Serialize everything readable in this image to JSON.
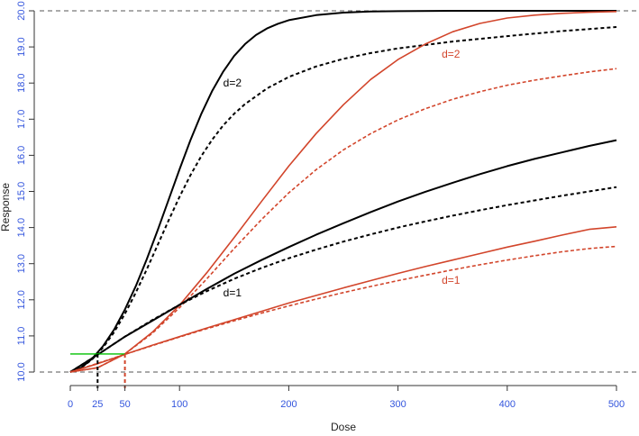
{
  "chart_data": {
    "type": "line",
    "title": "",
    "xlabel": "Dose",
    "ylabel": "Response",
    "xlim": [
      0,
      500
    ],
    "ylim": [
      10.0,
      20.0
    ],
    "x_ticks": [
      {
        "value": 0,
        "label": "0"
      },
      {
        "value": 25,
        "label": "25"
      },
      {
        "value": 50,
        "label": "50"
      },
      {
        "value": 100,
        "label": "100"
      },
      {
        "value": 200,
        "label": "200"
      },
      {
        "value": 300,
        "label": "300"
      },
      {
        "value": 400,
        "label": "400"
      },
      {
        "value": 500,
        "label": "500"
      }
    ],
    "y_ticks": [
      {
        "value": 10,
        "label": "10.0"
      },
      {
        "value": 11,
        "label": "11.0"
      },
      {
        "value": 12,
        "label": "12.0"
      },
      {
        "value": 13,
        "label": "13.0"
      },
      {
        "value": 14,
        "label": "14.0"
      },
      {
        "value": 15,
        "label": "15.0"
      },
      {
        "value": 16,
        "label": "16.0"
      },
      {
        "value": 17,
        "label": "17.0"
      },
      {
        "value": 18,
        "label": "18.0"
      },
      {
        "value": 19,
        "label": "19.0"
      },
      {
        "value": 20,
        "label": "20.0"
      }
    ],
    "reference_lines": [
      {
        "axis": "y",
        "value": 20.0,
        "style": "dashed",
        "color": "#555555"
      },
      {
        "axis": "y",
        "value": 10.0,
        "style": "dashed",
        "color": "#555555"
      }
    ],
    "threshold_segments": [
      {
        "color": "#00c000",
        "x": [
          0,
          50
        ],
        "y": [
          10.5,
          10.5
        ],
        "style": "solid"
      },
      {
        "color": "#000000",
        "x": [
          25,
          25
        ],
        "y": [
          10.5,
          10.0
        ],
        "style": "dashed"
      },
      {
        "color": "#d2452b",
        "x": [
          50,
          50
        ],
        "y": [
          10.5,
          10.0
        ],
        "style": "dashed"
      }
    ],
    "series": [
      {
        "color": "#000000",
        "style": "solid",
        "x": [
          0,
          10,
          20,
          30,
          40,
          50,
          60,
          70,
          80,
          90,
          100,
          110,
          120,
          130,
          140,
          150,
          160,
          170,
          180,
          190,
          200,
          225,
          250,
          275,
          300,
          350,
          400,
          450,
          500
        ],
        "y": [
          10.0,
          10.12,
          10.37,
          10.72,
          11.17,
          11.73,
          12.38,
          13.12,
          13.93,
          14.77,
          15.61,
          16.42,
          17.15,
          17.79,
          18.32,
          18.75,
          19.08,
          19.33,
          19.51,
          19.64,
          19.74,
          19.88,
          19.95,
          19.98,
          19.99,
          20.0,
          20.0,
          20.0,
          20.0
        ]
      },
      {
        "color": "#000000",
        "style": "dashed",
        "x": [
          0,
          10,
          20,
          30,
          40,
          50,
          60,
          70,
          80,
          90,
          100,
          110,
          120,
          130,
          140,
          150,
          160,
          180,
          200,
          225,
          250,
          275,
          300,
          350,
          400,
          450,
          500
        ],
        "y": [
          10.0,
          10.12,
          10.35,
          10.68,
          11.1,
          11.61,
          12.2,
          12.84,
          13.52,
          14.2,
          14.85,
          15.45,
          15.98,
          16.44,
          16.83,
          17.15,
          17.42,
          17.85,
          18.17,
          18.46,
          18.67,
          18.83,
          18.96,
          19.15,
          19.3,
          19.44,
          19.55
        ]
      },
      {
        "color": "#d2452b",
        "style": "solid",
        "x": [
          0,
          25,
          50,
          75,
          100,
          125,
          150,
          175,
          200,
          225,
          250,
          275,
          300,
          325,
          350,
          375,
          400,
          425,
          450,
          475,
          500
        ],
        "y": [
          10.0,
          10.12,
          10.5,
          11.1,
          11.85,
          12.75,
          13.72,
          14.72,
          15.7,
          16.6,
          17.4,
          18.1,
          18.65,
          19.08,
          19.42,
          19.65,
          19.8,
          19.88,
          19.93,
          19.96,
          19.98
        ]
      },
      {
        "color": "#d2452b",
        "style": "dashed",
        "x": [
          0,
          25,
          50,
          75,
          100,
          125,
          150,
          175,
          200,
          225,
          250,
          275,
          300,
          325,
          350,
          375,
          400,
          425,
          450,
          475,
          500
        ],
        "y": [
          10.0,
          10.12,
          10.5,
          11.07,
          11.78,
          12.58,
          13.42,
          14.22,
          14.96,
          15.6,
          16.15,
          16.6,
          16.98,
          17.29,
          17.55,
          17.76,
          17.94,
          18.08,
          18.2,
          18.31,
          18.4
        ]
      },
      {
        "color": "#000000",
        "style": "solid",
        "x": [
          0,
          25,
          50,
          75,
          100,
          125,
          150,
          175,
          200,
          225,
          250,
          275,
          300,
          325,
          350,
          375,
          400,
          425,
          450,
          475,
          500
        ],
        "y": [
          10.0,
          10.48,
          10.98,
          11.42,
          11.86,
          12.3,
          12.72,
          13.1,
          13.46,
          13.8,
          14.12,
          14.43,
          14.72,
          14.99,
          15.24,
          15.48,
          15.7,
          15.9,
          16.08,
          16.26,
          16.42
        ]
      },
      {
        "color": "#000000",
        "style": "dashed",
        "x": [
          0,
          25,
          50,
          75,
          100,
          125,
          150,
          175,
          200,
          225,
          250,
          275,
          300,
          325,
          350,
          375,
          400,
          425,
          450,
          475,
          500
        ],
        "y": [
          10.0,
          10.48,
          10.98,
          11.44,
          11.86,
          12.24,
          12.58,
          12.88,
          13.15,
          13.39,
          13.61,
          13.81,
          14.0,
          14.17,
          14.33,
          14.48,
          14.62,
          14.75,
          14.88,
          15.0,
          15.12
        ]
      },
      {
        "color": "#d2452b",
        "style": "solid",
        "x": [
          0,
          25,
          50,
          75,
          100,
          125,
          150,
          175,
          200,
          225,
          250,
          275,
          300,
          325,
          350,
          375,
          400,
          425,
          450,
          475,
          500
        ],
        "y": [
          10.0,
          10.23,
          10.49,
          10.74,
          10.98,
          11.22,
          11.45,
          11.68,
          11.91,
          12.12,
          12.33,
          12.53,
          12.73,
          12.92,
          13.1,
          13.28,
          13.46,
          13.62,
          13.79,
          13.95,
          14.02
        ]
      },
      {
        "color": "#d2452b",
        "style": "dashed",
        "x": [
          0,
          25,
          50,
          75,
          100,
          125,
          150,
          175,
          200,
          225,
          250,
          275,
          300,
          325,
          350,
          375,
          400,
          425,
          450,
          475,
          500
        ],
        "y": [
          10.0,
          10.24,
          10.49,
          10.73,
          10.97,
          11.2,
          11.42,
          11.63,
          11.83,
          12.02,
          12.2,
          12.37,
          12.53,
          12.68,
          12.83,
          12.97,
          13.1,
          13.22,
          13.33,
          13.42,
          13.48
        ]
      }
    ],
    "annotations": [
      {
        "text": "d=2",
        "x": 140,
        "y": 17.9,
        "color": "#000000"
      },
      {
        "text": "d=2",
        "x": 340,
        "y": 18.7,
        "color": "#d2452b"
      },
      {
        "text": "d=1",
        "x": 140,
        "y": 12.1,
        "color": "#000000"
      },
      {
        "text": "d=1",
        "x": 340,
        "y": 12.45,
        "color": "#d2452b"
      }
    ],
    "tick_label_color": "#3355dd",
    "grid": false,
    "legend": "none"
  }
}
